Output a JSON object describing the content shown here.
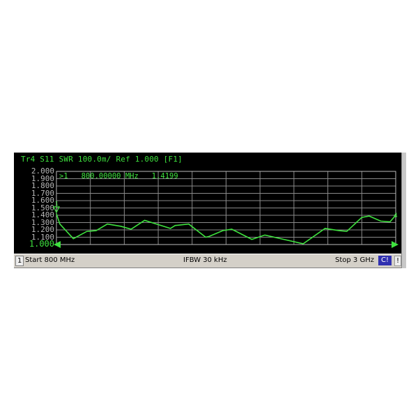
{
  "header": {
    "title": "Tr4  S11  SWR 100.0m/ Ref 1.000 [F1]"
  },
  "marker_readout": ">1   800.00000 MHz   1.4199",
  "status_bar": {
    "channel": "1",
    "start": "Start 800 MHz",
    "ifbw": "IFBW 30 kHz",
    "stop": "Stop 3 GHz",
    "cal": "C!",
    "warning": "!"
  },
  "colors": {
    "trace": "#3ee23e",
    "grid": "#8a8a8a",
    "background": "#000000",
    "status_bar": "#d4d0c8",
    "cal_badge": "#3030b0"
  },
  "chart_data": {
    "type": "line",
    "title": "",
    "xlabel": "",
    "ylabel": "",
    "xlim": [
      800,
      3000
    ],
    "ylim": [
      1.0,
      2.0
    ],
    "grid": true,
    "x_divisions": 10,
    "y_tick_labels": [
      "2.000",
      "1.900",
      "1.800",
      "1.700",
      "1.600",
      "1.500",
      "1.400",
      "1.300",
      "1.200",
      "1.100",
      "1.000"
    ],
    "reference_value": "1.000",
    "series": [
      {
        "x_mhz": [
          800,
          822,
          910,
          998,
          1057,
          1130,
          1218,
          1284,
          1372,
          1449,
          1539,
          1570,
          1658,
          1768,
          1790,
          1878,
          1937,
          2067,
          2151,
          2254,
          2400,
          2542,
          2633,
          2683,
          2780,
          2828,
          2903,
          2963,
          3000
        ],
        "swr": [
          1.42,
          1.28,
          1.08,
          1.18,
          1.19,
          1.28,
          1.25,
          1.21,
          1.33,
          1.28,
          1.22,
          1.26,
          1.28,
          1.1,
          1.11,
          1.19,
          1.21,
          1.07,
          1.13,
          1.08,
          1.01,
          1.22,
          1.19,
          1.18,
          1.37,
          1.39,
          1.32,
          1.31,
          1.4
        ]
      }
    ],
    "markers": [
      {
        "label": "1",
        "x_mhz": 800,
        "value": "1.4199"
      }
    ]
  }
}
